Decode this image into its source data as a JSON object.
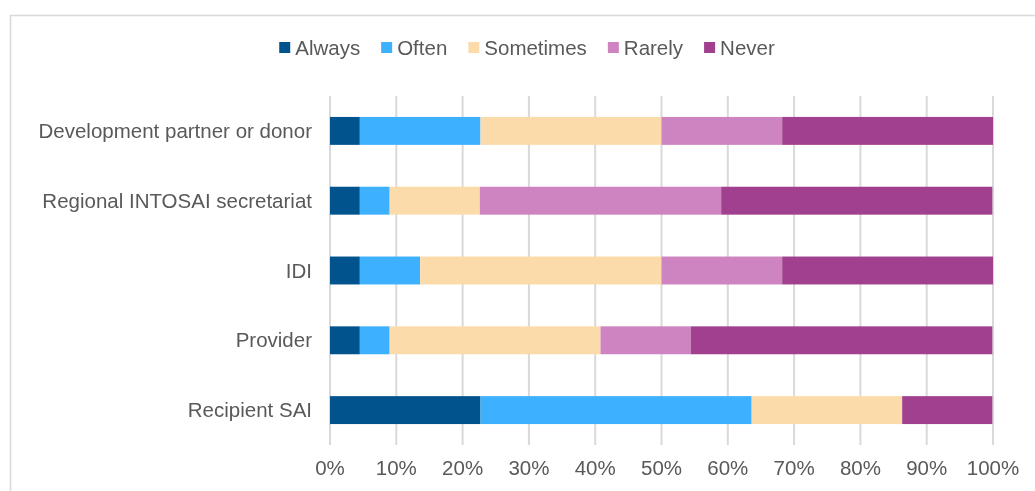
{
  "chart_data": {
    "type": "bar",
    "orientation": "horizontal",
    "stacked": true,
    "categories": [
      "Development partner or donor",
      "Regional INTOSAI secretariat",
      "IDI",
      "Provider",
      "Recipient SAI"
    ],
    "series": [
      {
        "name": "Always",
        "color": "#00538c",
        "values": [
          4.5,
          4.5,
          4.5,
          4.5,
          22.7
        ]
      },
      {
        "name": "Often",
        "color": "#3db0fe",
        "values": [
          18.2,
          4.5,
          9.1,
          4.5,
          40.9
        ]
      },
      {
        "name": "Sometimes",
        "color": "#fbdbaa",
        "values": [
          27.3,
          13.6,
          36.4,
          31.8,
          22.7
        ]
      },
      {
        "name": "Rarely",
        "color": "#ce84c1",
        "values": [
          18.2,
          36.4,
          18.2,
          13.6,
          0
        ]
      },
      {
        "name": "Never",
        "color": "#a0408e",
        "values": [
          31.8,
          40.9,
          31.8,
          45.5,
          13.6
        ]
      }
    ],
    "xlim": [
      0,
      100
    ],
    "xticks": [
      {
        "value": 0,
        "label": "0%"
      },
      {
        "value": 10,
        "label": "10%"
      },
      {
        "value": 20,
        "label": "20%"
      },
      {
        "value": 30,
        "label": "30%"
      },
      {
        "value": 40,
        "label": "40%"
      },
      {
        "value": 50,
        "label": "50%"
      },
      {
        "value": 60,
        "label": "60%"
      },
      {
        "value": 70,
        "label": "70%"
      },
      {
        "value": 80,
        "label": "80%"
      },
      {
        "value": 90,
        "label": "90%"
      },
      {
        "value": 100,
        "label": "100%"
      }
    ],
    "grid": "x",
    "legend": "top"
  }
}
